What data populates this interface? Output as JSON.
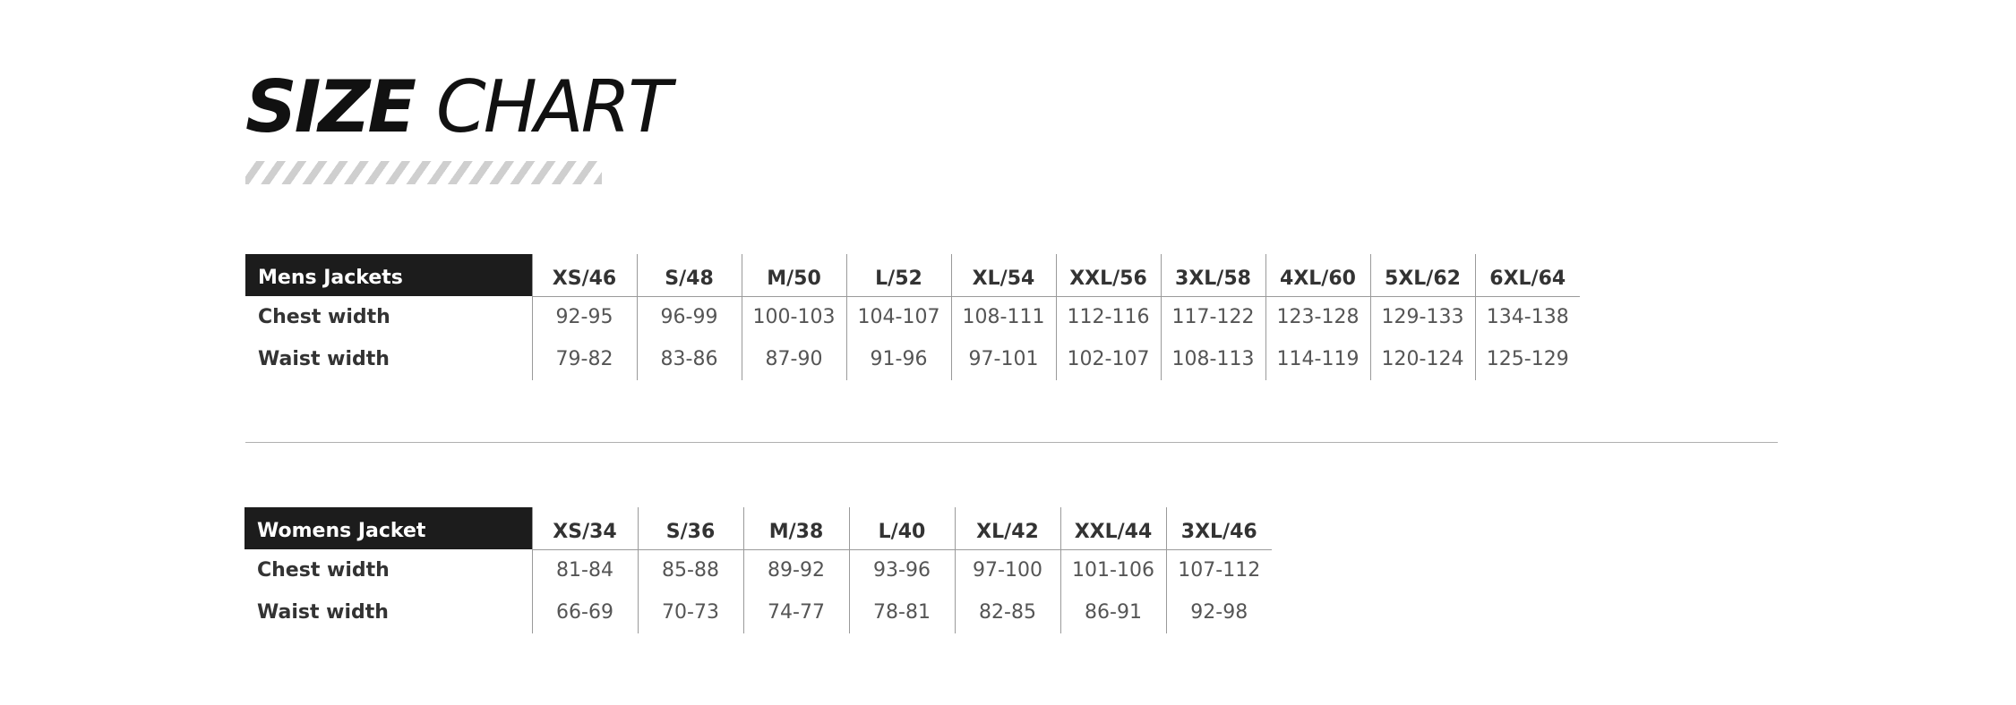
{
  "title": {
    "bold": "SIZE",
    "normal": "CHART"
  },
  "mens": {
    "label": "Mens Jackets",
    "sizes": [
      "XS/46",
      "S/48",
      "M/50",
      "L/52",
      "XL/54",
      "XXL/56",
      "3XL/58",
      "4XL/60",
      "5XL/62",
      "6XL/64"
    ],
    "rows": [
      {
        "label": "Chest width",
        "values": [
          "92-95",
          "96-99",
          "100-103",
          "104-107",
          "108-111",
          "112-116",
          "117-122",
          "123-128",
          "129-133",
          "134-138"
        ]
      },
      {
        "label": "Waist width",
        "values": [
          "79-82",
          "83-86",
          "87-90",
          "91-96",
          "97-101",
          "102-107",
          "108-113",
          "114-119",
          "120-124",
          "125-129"
        ]
      }
    ]
  },
  "womens": {
    "label": "Womens Jacket",
    "sizes": [
      "XS/34",
      "S/36",
      "M/38",
      "L/40",
      "XL/42",
      "XXL/44",
      "3XL/46"
    ],
    "rows": [
      {
        "label": "Chest width",
        "values": [
          "81-84",
          "85-88",
          "89-92",
          "93-96",
          "97-100",
          "101-106",
          "107-112"
        ]
      },
      {
        "label": "Waist width",
        "values": [
          "66-69",
          "70-73",
          "74-77",
          "78-81",
          "82-85",
          "86-91",
          "92-98"
        ]
      }
    ]
  },
  "colors": {
    "header_bg": "#1c1c1c",
    "header_text": "#ffffff",
    "rule": "#9a9a9a",
    "stripe": "#cfcfcf"
  }
}
